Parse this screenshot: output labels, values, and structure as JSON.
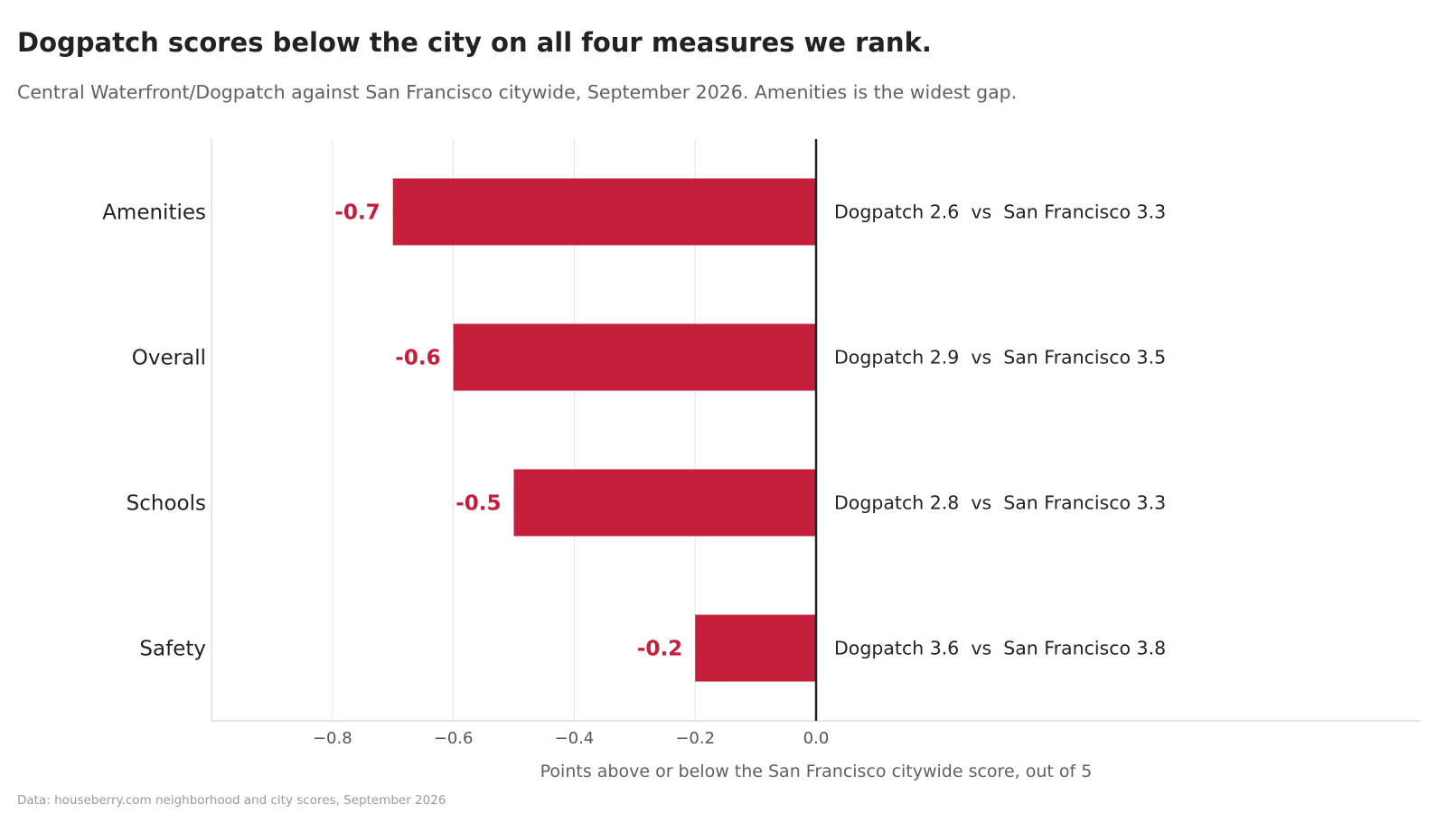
{
  "colors": {
    "bar": "#c41e3a",
    "text": "#222222",
    "muted": "#5f5f66",
    "grid": "#e6e6e6",
    "axis": "#cccccc",
    "zero_line": "#222222"
  },
  "chart_data": {
    "type": "bar",
    "orientation": "horizontal",
    "title": "Dogpatch scores below the city on all four measures we rank.",
    "subtitle": "Central Waterfront/Dogpatch against San Francisco citywide, September 2026. Amenities is the widest gap.",
    "xlabel": "Points above or below the San Francisco citywide score, out of 5",
    "source": "Data: houseberry.com neighborhood and city scores, September 2026",
    "categories": [
      "Amenities",
      "Overall",
      "Schools",
      "Safety"
    ],
    "values": [
      -0.7,
      -0.6,
      -0.5,
      -0.2
    ],
    "value_labels": [
      "-0.7",
      "-0.6",
      "-0.5",
      "-0.2"
    ],
    "comparison_labels": [
      "Dogpatch 2.6  vs  San Francisco 3.3",
      "Dogpatch 2.9  vs  San Francisco 3.5",
      "Dogpatch 2.8  vs  San Francisco 3.3",
      "Dogpatch 3.6  vs  San Francisco 3.8"
    ],
    "xlim": [
      -1.0,
      1.0
    ],
    "xticks": [
      -0.8,
      -0.6,
      -0.4,
      -0.2,
      0.0
    ],
    "xtick_labels": [
      "−0.8",
      "−0.6",
      "−0.4",
      "−0.2",
      "0.0"
    ],
    "grid": "vertical",
    "legend": "none"
  }
}
